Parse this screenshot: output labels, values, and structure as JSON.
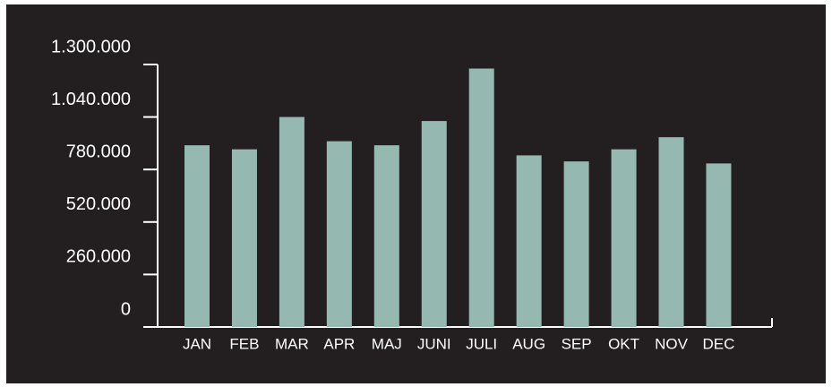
{
  "chart_data": {
    "type": "bar",
    "categories": [
      "JAN",
      "FEB",
      "MAR",
      "APR",
      "MAJ",
      "JUNI",
      "JULI",
      "AUG",
      "SEP",
      "OKT",
      "NOV",
      "DEC"
    ],
    "values": [
      900000,
      880000,
      1040000,
      920000,
      900000,
      1020000,
      1280000,
      850000,
      820000,
      880000,
      940000,
      810000
    ],
    "color": "#95b8b0",
    "ylim": [
      0,
      1300000
    ],
    "yticks": [
      0,
      {
        "value": 260000,
        "label": "260.000"
      },
      {
        "value": 520000,
        "label": "520.000"
      },
      {
        "value": 780000,
        "label": "780.000"
      },
      {
        "value": 1040000,
        "label": "1.040.000"
      },
      {
        "value": 1300000,
        "label": "1.300.000"
      }
    ]
  }
}
